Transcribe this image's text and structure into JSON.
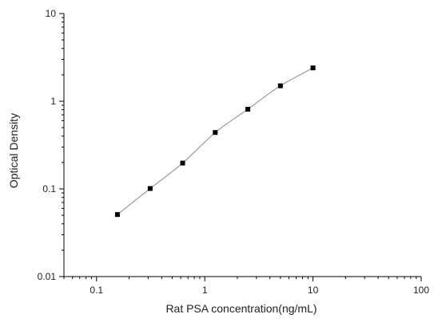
{
  "chart_data": {
    "type": "scatter",
    "xlabel": "Rat PSA concentration(ng/mL)",
    "ylabel": "Optical Density",
    "xscale": "log",
    "yscale": "log",
    "xlim": [
      0.05,
      100
    ],
    "ylim": [
      0.01,
      10
    ],
    "x_ticks": [
      0.1,
      1,
      10,
      100
    ],
    "x_tick_labels": [
      "0.1",
      "1",
      "10",
      "100"
    ],
    "y_ticks": [
      0.01,
      0.1,
      1,
      10
    ],
    "y_tick_labels": [
      "0.01",
      "0.1",
      "1",
      "10"
    ],
    "grid": false,
    "legend": "none",
    "series": [
      {
        "x": [
          0.156,
          0.313,
          0.625,
          1.25,
          2.5,
          5,
          10
        ],
        "y": [
          0.051,
          0.101,
          0.197,
          0.44,
          0.81,
          1.5,
          2.4
        ],
        "marker": "square",
        "fit_line": true
      }
    ],
    "colors": {
      "marker": "#000000",
      "curve": "#888888",
      "axis": "#000000"
    }
  }
}
